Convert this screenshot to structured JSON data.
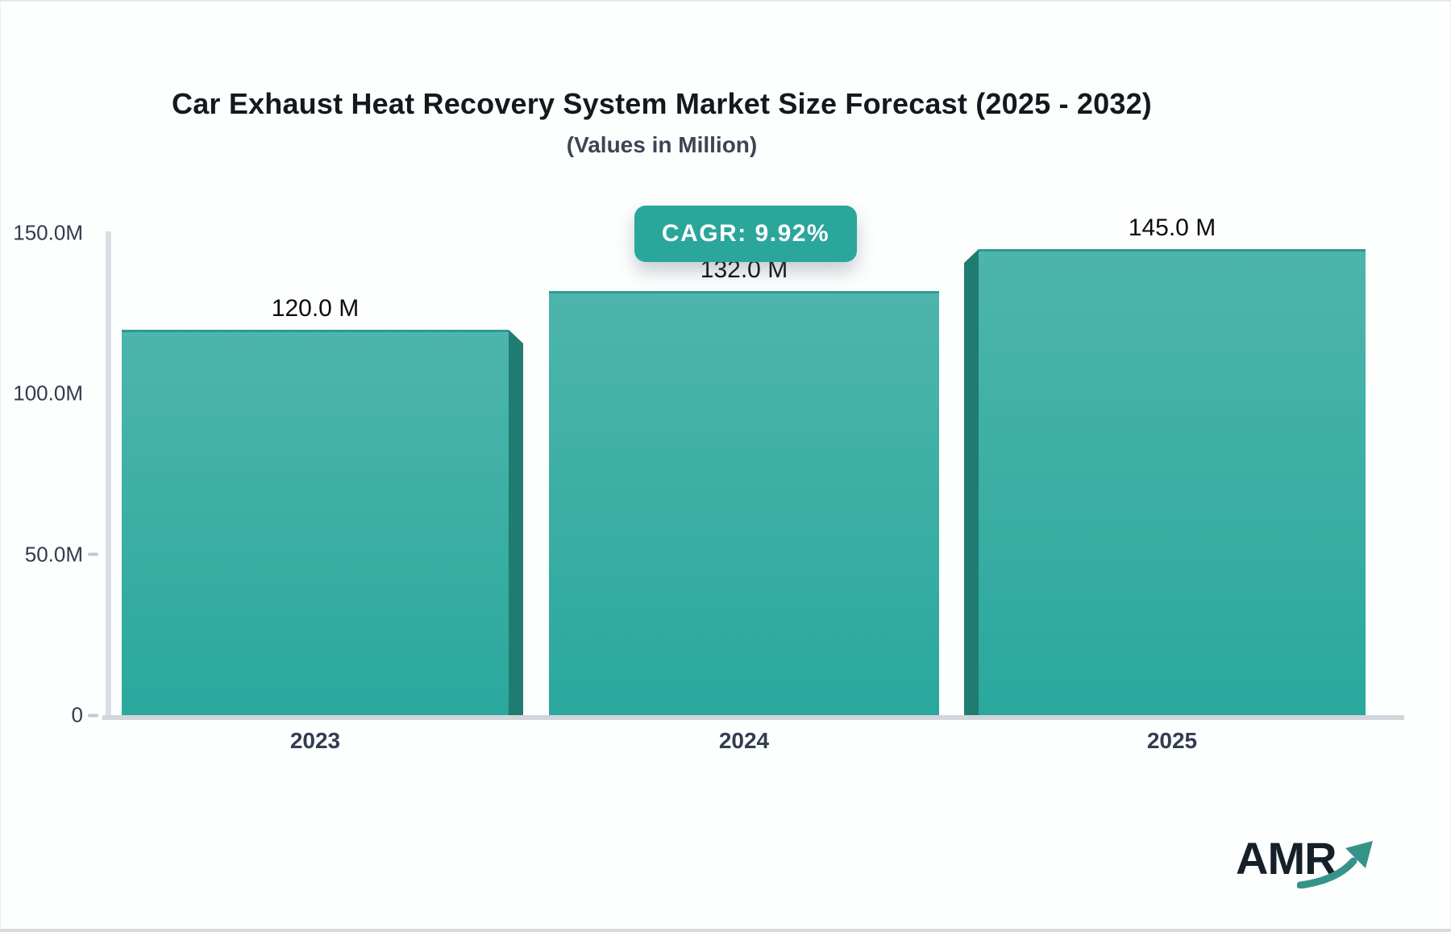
{
  "chart_data": {
    "type": "bar",
    "title": "Car Exhaust Heat Recovery System Market Size Forecast (2025 - 2032)",
    "subtitle": "(Values in Million)",
    "categories": [
      "2023",
      "2024",
      "2025"
    ],
    "values": [
      120.0,
      132.0,
      145.0
    ],
    "value_labels": [
      "120.0 M",
      "132.0 M",
      "145.0 M"
    ],
    "unit": "Million",
    "ylim": [
      0,
      150
    ],
    "yticks": [
      {
        "label": "150.0M",
        "value": 150
      },
      {
        "label": "100.0M",
        "value": 100
      },
      {
        "label": "50.0M",
        "value": 50
      },
      {
        "label": "0",
        "value": 0
      }
    ],
    "xlabel": "",
    "ylabel": "",
    "grid": false,
    "legend": false,
    "cagr_label": "CAGR: 9.92%"
  },
  "logo": {
    "text": "AMR",
    "icon": "growth-arrow-icon"
  },
  "colors": {
    "bar-top": "#4db5ab",
    "bar-bottom": "#2aa89d",
    "bar-edge": "#2f9a91",
    "bar-shade": "#1f7c71",
    "badge": "#2aa69b",
    "axis": "#d5d8dd",
    "logo-arrow": "#36938a"
  }
}
